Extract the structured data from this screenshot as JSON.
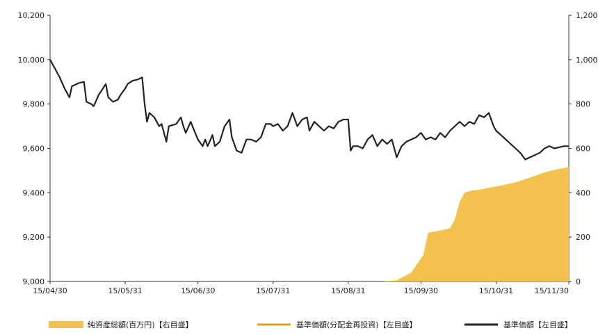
{
  "chart_data": {
    "type": "line",
    "title": "",
    "xlabel": "",
    "x_tick_labels": [
      "15/04/30",
      "15/05/31",
      "15/06/30",
      "15/07/31",
      "15/08/31",
      "15/09/30",
      "15/10/31",
      "15/11/30"
    ],
    "left_axis": {
      "ylim": [
        9000,
        10200
      ],
      "ticks": [
        "9,000",
        "9,200",
        "9,400",
        "9,600",
        "9,800",
        "10,000",
        "10,200"
      ]
    },
    "right_axis": {
      "ylim": [
        0,
        1200
      ],
      "ticks": [
        "0",
        "200",
        "400",
        "600",
        "800",
        "1,000",
        "1,200"
      ]
    },
    "grid": false,
    "legend_position": "bottom",
    "series": [
      {
        "name": "純資産総額(百万円)【右目盛】",
        "kind": "area",
        "axis": "right",
        "color": "#F2C14E",
        "points": [
          [
            "15/04/30",
            0
          ],
          [
            "15/05/31",
            0
          ],
          [
            "15/06/30",
            0
          ],
          [
            "15/07/31",
            0
          ],
          [
            "15/08/31",
            0
          ],
          [
            "15/09/14",
            0
          ],
          [
            "15/09/20",
            5
          ],
          [
            "15/09/26",
            40
          ],
          [
            "15/10/01",
            120
          ],
          [
            "15/10/03",
            220
          ],
          [
            "15/10/08",
            230
          ],
          [
            "15/10/12",
            240
          ],
          [
            "15/10/14",
            280
          ],
          [
            "15/10/16",
            360
          ],
          [
            "15/10/18",
            400
          ],
          [
            "15/10/21",
            410
          ],
          [
            "15/10/25",
            415
          ],
          [
            "15/10/29",
            425
          ],
          [
            "15/11/01",
            430
          ],
          [
            "15/11/05",
            440
          ],
          [
            "15/11/09",
            450
          ],
          [
            "15/11/13",
            465
          ],
          [
            "15/11/17",
            480
          ],
          [
            "15/11/21",
            495
          ],
          [
            "15/11/25",
            505
          ],
          [
            "15/11/30",
            515
          ]
        ]
      },
      {
        "name": "基準価額(分配金再投資)【左目盛】",
        "kind": "line",
        "axis": "left",
        "color": "#E0A21A",
        "points": []
      },
      {
        "name": "基準価額【左目盛】",
        "kind": "line",
        "axis": "left",
        "color": "#222222",
        "points": [
          [
            "15/04/30",
            10000
          ],
          [
            "15/05/02",
            9960
          ],
          [
            "15/05/04",
            9920
          ],
          [
            "15/05/06",
            9870
          ],
          [
            "15/05/08",
            9830
          ],
          [
            "15/05/09",
            9880
          ],
          [
            "15/05/12",
            9895
          ],
          [
            "15/05/14",
            9900
          ],
          [
            "15/05/15",
            9810
          ],
          [
            "15/05/17",
            9800
          ],
          [
            "15/05/18",
            9790
          ],
          [
            "15/05/20",
            9840
          ],
          [
            "15/05/23",
            9890
          ],
          [
            "15/05/24",
            9830
          ],
          [
            "15/05/26",
            9810
          ],
          [
            "15/05/28",
            9820
          ],
          [
            "15/05/29",
            9840
          ],
          [
            "15/05/31",
            9870
          ],
          [
            "15/06/01",
            9890
          ],
          [
            "15/06/03",
            9905
          ],
          [
            "15/06/05",
            9910
          ],
          [
            "15/06/07",
            9920
          ],
          [
            "15/06/08",
            9800
          ],
          [
            "15/06/09",
            9720
          ],
          [
            "15/06/10",
            9760
          ],
          [
            "15/06/12",
            9740
          ],
          [
            "15/06/14",
            9700
          ],
          [
            "15/06/15",
            9710
          ],
          [
            "15/06/17",
            9630
          ],
          [
            "15/06/18",
            9700
          ],
          [
            "15/06/21",
            9710
          ],
          [
            "15/06/23",
            9740
          ],
          [
            "15/06/24",
            9700
          ],
          [
            "15/06/25",
            9670
          ],
          [
            "15/06/27",
            9720
          ],
          [
            "15/06/30",
            9640
          ],
          [
            "15/07/02",
            9610
          ],
          [
            "15/07/03",
            9640
          ],
          [
            "15/07/04",
            9610
          ],
          [
            "15/07/06",
            9660
          ],
          [
            "15/07/07",
            9610
          ],
          [
            "15/07/09",
            9630
          ],
          [
            "15/07/11",
            9700
          ],
          [
            "15/07/13",
            9730
          ],
          [
            "15/07/14",
            9650
          ],
          [
            "15/07/16",
            9590
          ],
          [
            "15/07/18",
            9580
          ],
          [
            "15/07/20",
            9640
          ],
          [
            "15/07/22",
            9640
          ],
          [
            "15/07/24",
            9630
          ],
          [
            "15/07/26",
            9650
          ],
          [
            "15/07/28",
            9710
          ],
          [
            "15/07/30",
            9710
          ],
          [
            "15/07/31",
            9700
          ],
          [
            "15/08/02",
            9710
          ],
          [
            "15/08/04",
            9680
          ],
          [
            "15/08/06",
            9700
          ],
          [
            "15/08/08",
            9760
          ],
          [
            "15/08/10",
            9700
          ],
          [
            "15/08/12",
            9730
          ],
          [
            "15/08/14",
            9740
          ],
          [
            "15/08/15",
            9680
          ],
          [
            "15/08/17",
            9720
          ],
          [
            "15/08/19",
            9700
          ],
          [
            "15/08/21",
            9680
          ],
          [
            "15/08/23",
            9700
          ],
          [
            "15/08/25",
            9690
          ],
          [
            "15/08/27",
            9720
          ],
          [
            "15/08/29",
            9730
          ],
          [
            "15/08/31",
            9730
          ],
          [
            "15/09/01",
            9590
          ],
          [
            "15/09/02",
            9610
          ],
          [
            "15/09/04",
            9610
          ],
          [
            "15/09/06",
            9600
          ],
          [
            "15/09/08",
            9640
          ],
          [
            "15/09/10",
            9660
          ],
          [
            "15/09/12",
            9610
          ],
          [
            "15/09/14",
            9640
          ],
          [
            "15/09/16",
            9620
          ],
          [
            "15/09/18",
            9640
          ],
          [
            "15/09/20",
            9560
          ],
          [
            "15/09/22",
            9610
          ],
          [
            "15/09/24",
            9630
          ],
          [
            "15/09/26",
            9640
          ],
          [
            "15/09/28",
            9650
          ],
          [
            "15/09/30",
            9670
          ],
          [
            "15/10/02",
            9640
          ],
          [
            "15/10/04",
            9650
          ],
          [
            "15/10/06",
            9640
          ],
          [
            "15/10/08",
            9670
          ],
          [
            "15/10/10",
            9650
          ],
          [
            "15/10/12",
            9680
          ],
          [
            "15/10/14",
            9700
          ],
          [
            "15/10/16",
            9720
          ],
          [
            "15/10/18",
            9700
          ],
          [
            "15/10/20",
            9720
          ],
          [
            "15/10/22",
            9710
          ],
          [
            "15/10/24",
            9750
          ],
          [
            "15/10/26",
            9740
          ],
          [
            "15/10/28",
            9760
          ],
          [
            "15/10/30",
            9700
          ],
          [
            "15/10/31",
            9680
          ],
          [
            "15/11/02",
            9660
          ],
          [
            "15/11/04",
            9640
          ],
          [
            "15/11/06",
            9620
          ],
          [
            "15/11/08",
            9600
          ],
          [
            "15/11/10",
            9580
          ],
          [
            "15/11/12",
            9550
          ],
          [
            "15/11/14",
            9560
          ],
          [
            "15/11/16",
            9570
          ],
          [
            "15/11/18",
            9580
          ],
          [
            "15/11/20",
            9600
          ],
          [
            "15/11/22",
            9610
          ],
          [
            "15/11/24",
            9600
          ],
          [
            "15/11/26",
            9605
          ],
          [
            "15/11/28",
            9610
          ],
          [
            "15/11/30",
            9610
          ]
        ]
      }
    ]
  }
}
